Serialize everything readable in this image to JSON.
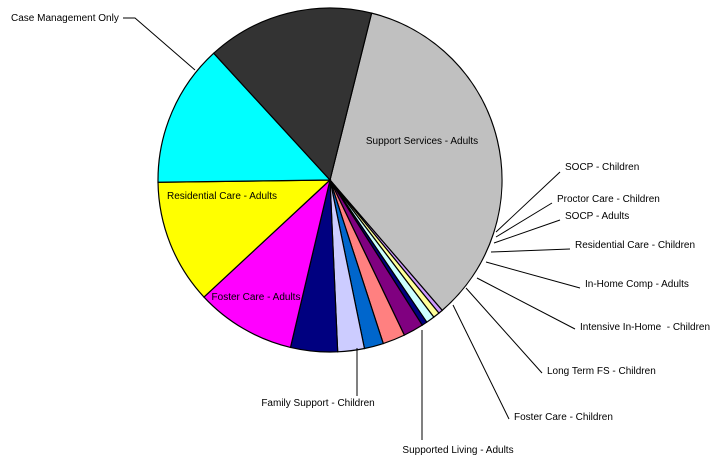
{
  "chart_data": {
    "type": "pie",
    "title": "",
    "legend": "none",
    "slices": [
      {
        "label": "Support Services - Adults",
        "value": 34.8,
        "color": "#c0c0c0"
      },
      {
        "label": "SOCP - Children",
        "value": 0.4,
        "color": "#cc99ff"
      },
      {
        "label": "Proctor Care - Children",
        "value": 0.6,
        "color": "#ffff99"
      },
      {
        "label": "SOCP - Adults",
        "value": 0.8,
        "color": "#ccffff"
      },
      {
        "label": "Residential Care - Children",
        "value": 0.5,
        "color": "#000080"
      },
      {
        "label": "In-Home Comp - Adults",
        "value": 1.9,
        "color": "#800080"
      },
      {
        "label": "Intensive In-Home  - Children",
        "value": 2.1,
        "color": "#ff8080"
      },
      {
        "label": "Long Term FS - Children",
        "value": 1.8,
        "color": "#0066cc"
      },
      {
        "label": "Foster Care - Children",
        "value": 2.5,
        "color": "#ccccff"
      },
      {
        "label": "Supported Living - Adults",
        "value": 4.4,
        "color": "#000080"
      },
      {
        "label": "Family Support - Children",
        "value": 9.4,
        "color": "#ff00ff"
      },
      {
        "label": "Foster Care - Adults",
        "value": 11.7,
        "color": "#ffff00"
      },
      {
        "label": "Residential Care - Adults",
        "value": 13.4,
        "color": "#00ffff"
      },
      {
        "label": "Case Management Only",
        "value": 15.7,
        "color": "#333333"
      }
    ]
  }
}
